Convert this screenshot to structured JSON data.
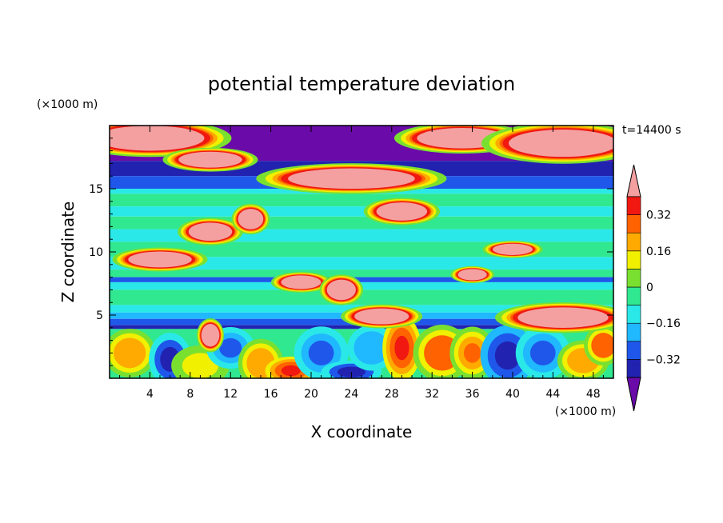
{
  "chart_data": {
    "type": "heatmap",
    "title": "potential temperature deviation",
    "xlabel": "X coordinate",
    "ylabel": "Z coordinate",
    "x_unit": "(×1000 m)",
    "y_unit": "(×1000 m)",
    "time_label": "t=14400 s",
    "xlim": [
      0,
      50
    ],
    "ylim": [
      0,
      20
    ],
    "x_ticks": [
      4,
      8,
      12,
      16,
      20,
      24,
      28,
      32,
      36,
      40,
      44,
      48
    ],
    "y_ticks": [
      5,
      10,
      15
    ],
    "colorbar": {
      "levels": [
        -0.4,
        -0.32,
        -0.24,
        -0.16,
        -0.08,
        0,
        0.08,
        0.16,
        0.24,
        0.32,
        0.4
      ],
      "tick_labels": [
        "0.32",
        "0.16",
        "0",
        "−0.16",
        "−0.32"
      ],
      "tick_values": [
        0.32,
        0.16,
        0,
        -0.16,
        -0.32
      ],
      "colors": [
        "#6a0aa8",
        "#2222b0",
        "#1f57ea",
        "#20b8ff",
        "#2ae8e8",
        "#30e890",
        "#7ae030",
        "#f0f000",
        "#ffaa00",
        "#ff6200",
        "#f01810",
        "#f4a0a0"
      ],
      "extend": "both"
    },
    "bands": [
      {
        "z_from": 17.2,
        "z_to": 20,
        "value": -0.45
      },
      {
        "z_from": 16.0,
        "z_to": 17.2,
        "value": -0.36
      },
      {
        "z_from": 15.0,
        "z_to": 16.0,
        "value": -0.3
      },
      {
        "z_from": 14.6,
        "z_to": 15.0,
        "value": -0.12
      },
      {
        "z_from": 13.6,
        "z_to": 14.6,
        "value": -0.04
      },
      {
        "z_from": 12.8,
        "z_to": 13.6,
        "value": -0.1
      },
      {
        "z_from": 11.8,
        "z_to": 12.8,
        "value": -0.04
      },
      {
        "z_from": 10.8,
        "z_to": 11.8,
        "value": -0.1
      },
      {
        "z_from": 9.6,
        "z_to": 10.8,
        "value": -0.04
      },
      {
        "z_from": 8.6,
        "z_to": 9.6,
        "value": -0.1
      },
      {
        "z_from": 8.0,
        "z_to": 8.6,
        "value": -0.04
      },
      {
        "z_from": 7.6,
        "z_to": 8.0,
        "value": -0.3
      },
      {
        "z_from": 7.0,
        "z_to": 7.6,
        "value": -0.1
      },
      {
        "z_from": 5.8,
        "z_to": 7.0,
        "value": -0.04
      },
      {
        "z_from": 5.2,
        "z_to": 5.8,
        "value": -0.12
      },
      {
        "z_from": 4.7,
        "z_to": 5.2,
        "value": -0.22
      },
      {
        "z_from": 4.2,
        "z_to": 4.7,
        "value": -0.3
      },
      {
        "z_from": 3.9,
        "z_to": 4.2,
        "value": -0.36
      },
      {
        "z_from": 0,
        "z_to": 3.9,
        "value": -0.04
      }
    ],
    "warm_patches": [
      {
        "x": 4,
        "z": 19.0,
        "rx": 6,
        "rz": 1.1,
        "value": 0.45
      },
      {
        "x": 10,
        "z": 17.3,
        "rx": 3.5,
        "rz": 0.7,
        "value": 0.45
      },
      {
        "x": 24,
        "z": 15.8,
        "rx": 7,
        "rz": 0.9,
        "value": 0.45
      },
      {
        "x": 35,
        "z": 19.0,
        "rx": 5,
        "rz": 0.9,
        "value": 0.45
      },
      {
        "x": 45,
        "z": 18.6,
        "rx": 6,
        "rz": 1.2,
        "value": 0.45
      },
      {
        "x": 29,
        "z": 13.2,
        "rx": 2.8,
        "rz": 0.8,
        "value": 0.45
      },
      {
        "x": 5,
        "z": 9.4,
        "rx": 3.5,
        "rz": 0.7,
        "value": 0.45
      },
      {
        "x": 10,
        "z": 11.6,
        "rx": 2.4,
        "rz": 0.8,
        "value": 0.45
      },
      {
        "x": 14,
        "z": 12.6,
        "rx": 1.4,
        "rz": 0.9,
        "value": 0.45
      },
      {
        "x": 19,
        "z": 7.6,
        "rx": 2.2,
        "rz": 0.6,
        "value": 0.45
      },
      {
        "x": 23,
        "z": 7.0,
        "rx": 1.6,
        "rz": 0.9,
        "value": 0.45
      },
      {
        "x": 27,
        "z": 4.9,
        "rx": 3.0,
        "rz": 0.7,
        "value": 0.45
      },
      {
        "x": 36,
        "z": 8.2,
        "rx": 1.6,
        "rz": 0.5,
        "value": 0.45
      },
      {
        "x": 40,
        "z": 10.2,
        "rx": 2.2,
        "rz": 0.5,
        "value": 0.45
      },
      {
        "x": 45,
        "z": 4.8,
        "rx": 5,
        "rz": 0.9,
        "value": 0.45
      },
      {
        "x": 10,
        "z": 3.4,
        "rx": 1.0,
        "rz": 1.0,
        "value": 0.45
      }
    ],
    "lower_blobs": [
      {
        "x": 2,
        "z": 2.0,
        "rx": 1.6,
        "rz": 1.2,
        "value": 0.2
      },
      {
        "x": 6,
        "z": 1.5,
        "rx": 1.4,
        "rz": 1.4,
        "value": -0.36
      },
      {
        "x": 9,
        "z": 1.0,
        "rx": 1.8,
        "rz": 1.0,
        "value": 0.12
      },
      {
        "x": 12,
        "z": 2.4,
        "rx": 1.6,
        "rz": 1.1,
        "value": -0.3
      },
      {
        "x": 15,
        "z": 1.2,
        "rx": 1.4,
        "rz": 1.2,
        "value": 0.2
      },
      {
        "x": 18,
        "z": 0.6,
        "rx": 1.6,
        "rz": 0.7,
        "value": 0.34
      },
      {
        "x": 21,
        "z": 2.0,
        "rx": 1.8,
        "rz": 1.4,
        "value": -0.3
      },
      {
        "x": 24,
        "z": 0.5,
        "rx": 2.0,
        "rz": 0.6,
        "value": -0.36
      },
      {
        "x": 26,
        "z": 2.4,
        "rx": 1.6,
        "rz": 1.2,
        "value": -0.22
      },
      {
        "x": 29,
        "z": 2.4,
        "rx": 1.2,
        "rz": 1.6,
        "value": 0.34
      },
      {
        "x": 33,
        "z": 2.0,
        "rx": 1.8,
        "rz": 1.4,
        "value": 0.3
      },
      {
        "x": 36,
        "z": 2.0,
        "rx": 1.4,
        "rz": 1.3,
        "value": 0.26
      },
      {
        "x": 39.5,
        "z": 1.8,
        "rx": 1.8,
        "rz": 1.6,
        "value": -0.4
      },
      {
        "x": 43,
        "z": 2.0,
        "rx": 1.8,
        "rz": 1.4,
        "value": -0.3
      },
      {
        "x": 47,
        "z": 1.4,
        "rx": 1.6,
        "rz": 1.0,
        "value": 0.2
      },
      {
        "x": 49,
        "z": 2.6,
        "rx": 1.2,
        "rz": 1.0,
        "value": 0.3
      }
    ]
  }
}
